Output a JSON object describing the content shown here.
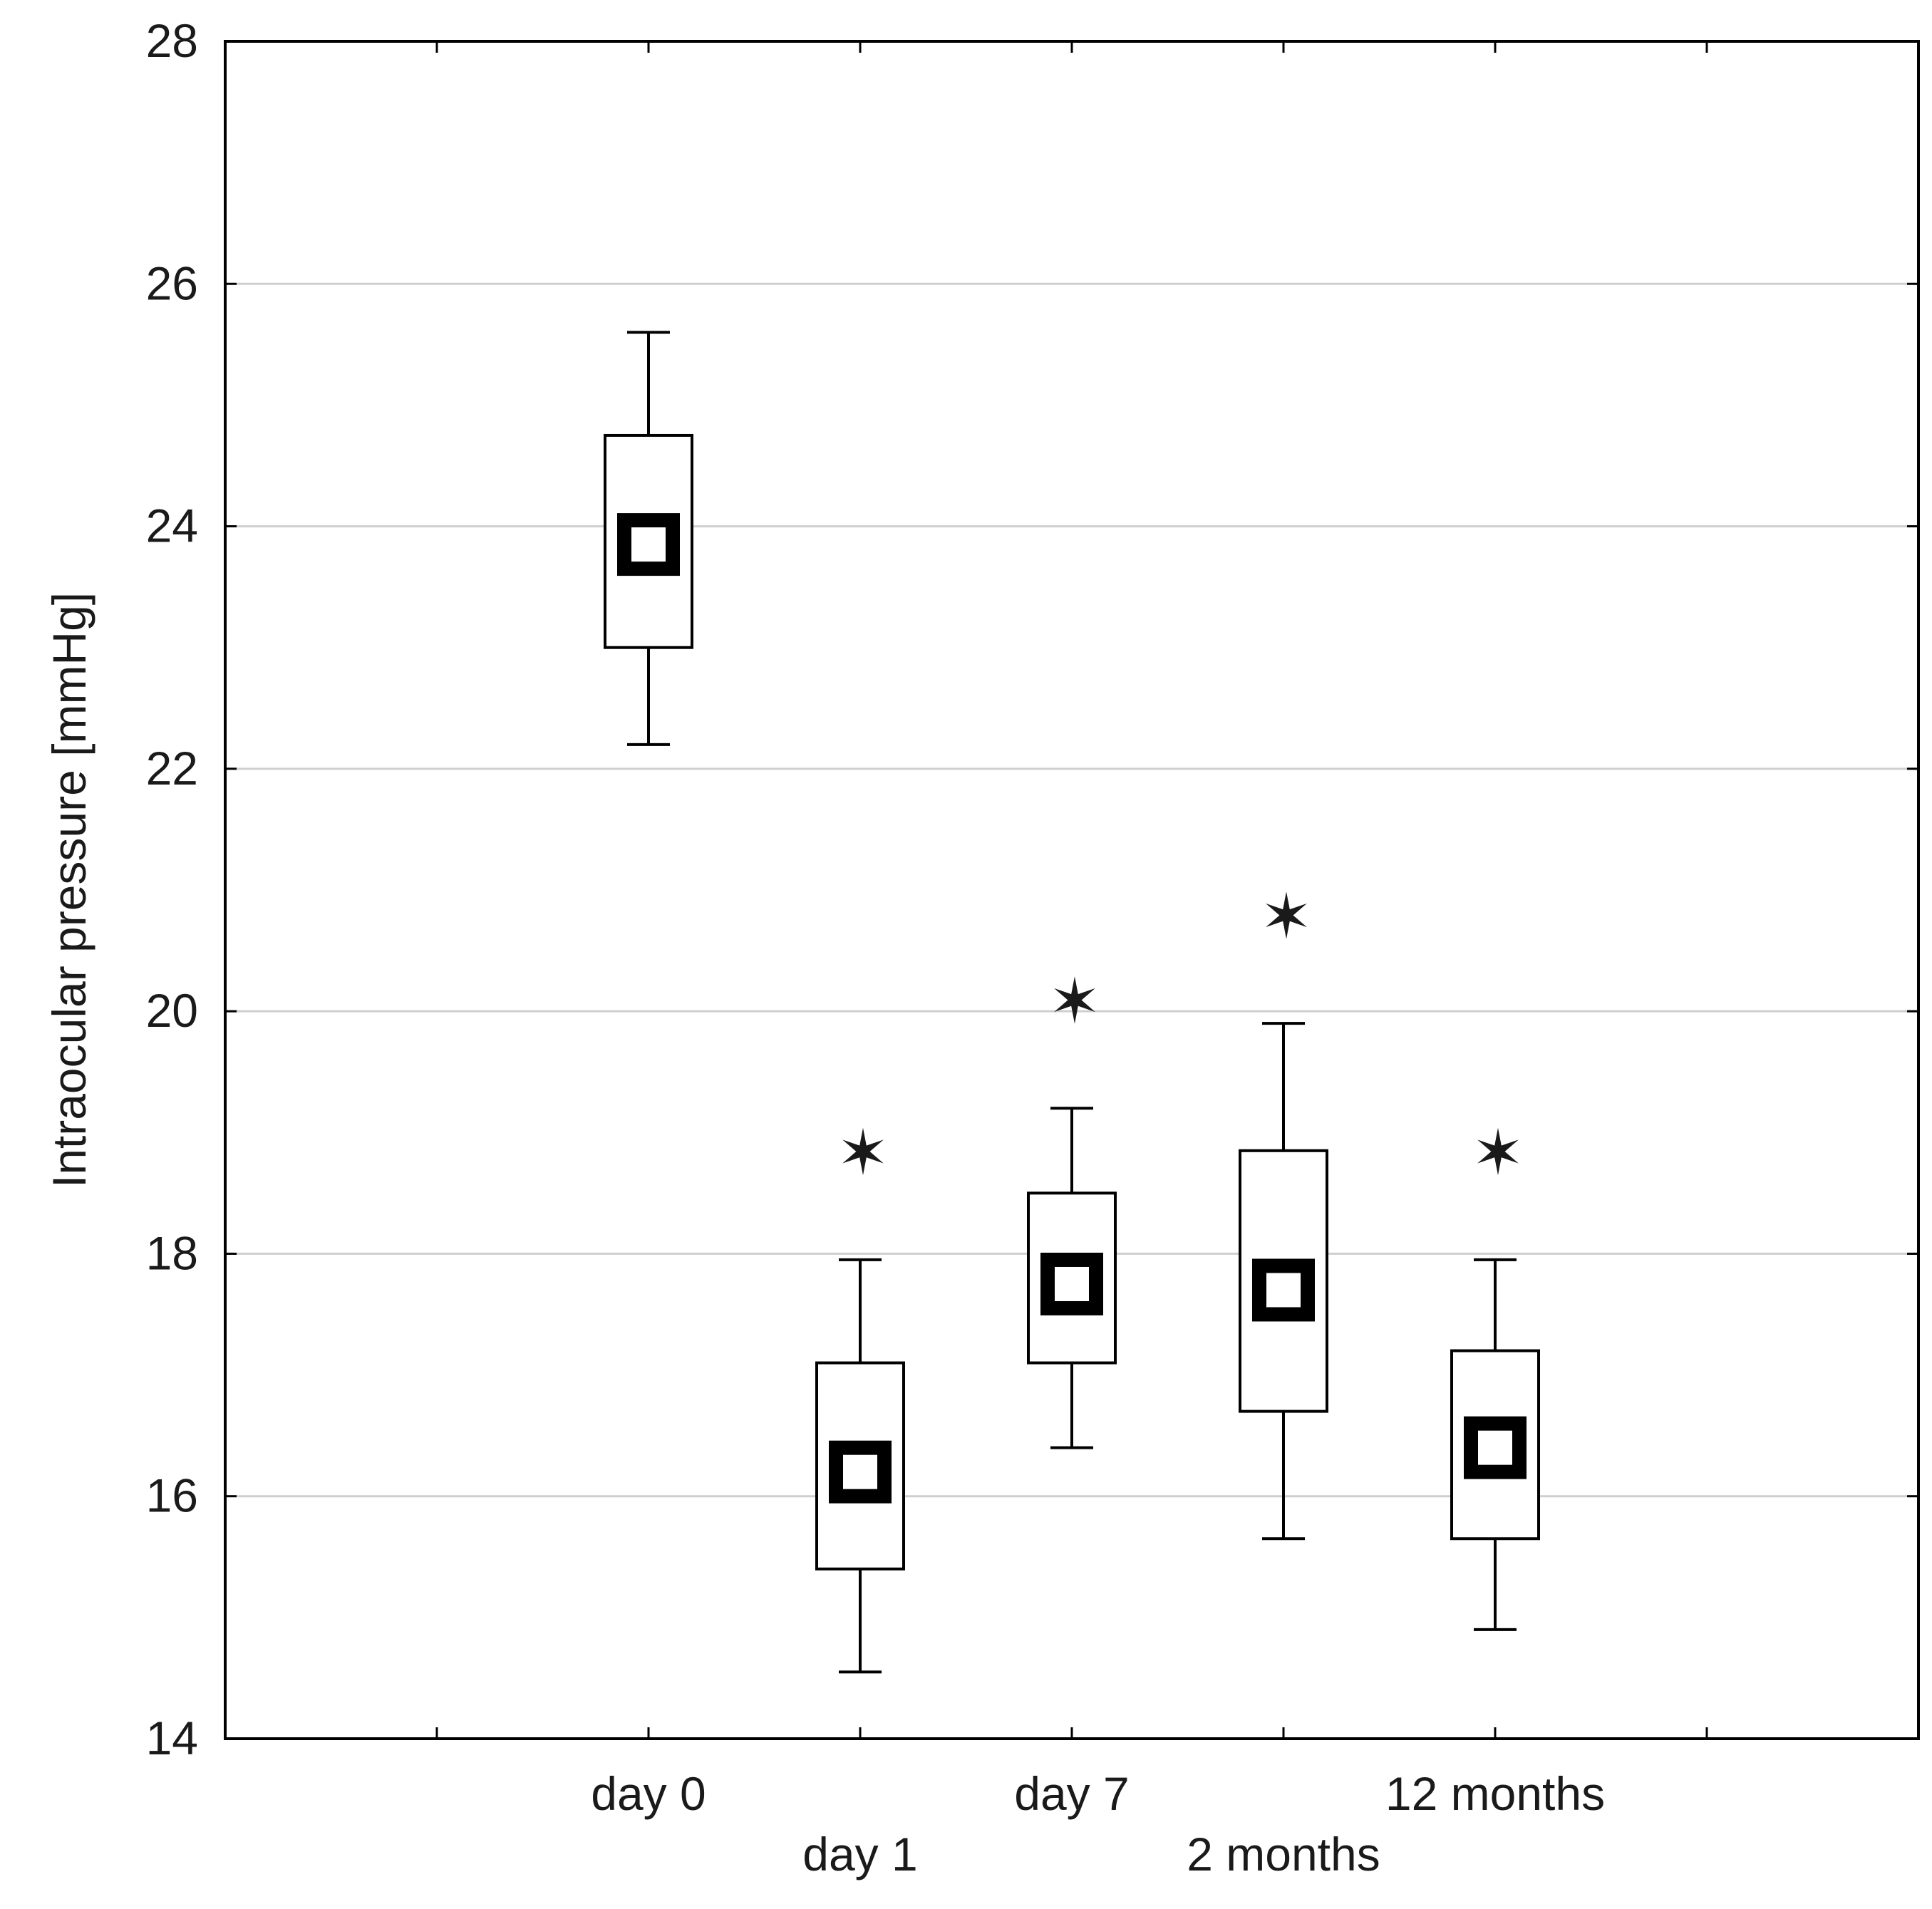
{
  "chart_data": {
    "type": "box",
    "title": "",
    "xlabel": "",
    "ylabel": "Intraocular pressure [mmHg]",
    "ylim": [
      14,
      28
    ],
    "yticks": [
      14,
      16,
      18,
      20,
      22,
      24,
      26,
      28
    ],
    "grid": "horizontal",
    "legend": "none",
    "categories": [
      "day 0",
      "day 1",
      "day 7",
      "2 months",
      "12 months"
    ],
    "boxes": [
      {
        "category": "day 0",
        "mean": 23.85,
        "box_low": 23.0,
        "box_high": 24.75,
        "whisker_low": 22.2,
        "whisker_high": 25.6,
        "significant": false
      },
      {
        "category": "day 1",
        "mean": 16.2,
        "box_low": 15.4,
        "box_high": 17.1,
        "whisker_low": 14.55,
        "whisker_high": 17.95,
        "significant": true
      },
      {
        "category": "day 7",
        "mean": 17.75,
        "box_low": 17.1,
        "box_high": 18.5,
        "whisker_low": 16.4,
        "whisker_high": 19.2,
        "significant": true
      },
      {
        "category": "2 months",
        "mean": 17.7,
        "box_low": 16.7,
        "box_high": 18.85,
        "whisker_low": 15.65,
        "whisker_high": 19.9,
        "significant": true
      },
      {
        "category": "12 months",
        "mean": 16.4,
        "box_low": 15.65,
        "box_high": 17.2,
        "whisker_low": 14.9,
        "whisker_high": 17.95,
        "significant": true
      }
    ],
    "significance_marker": "✶"
  }
}
